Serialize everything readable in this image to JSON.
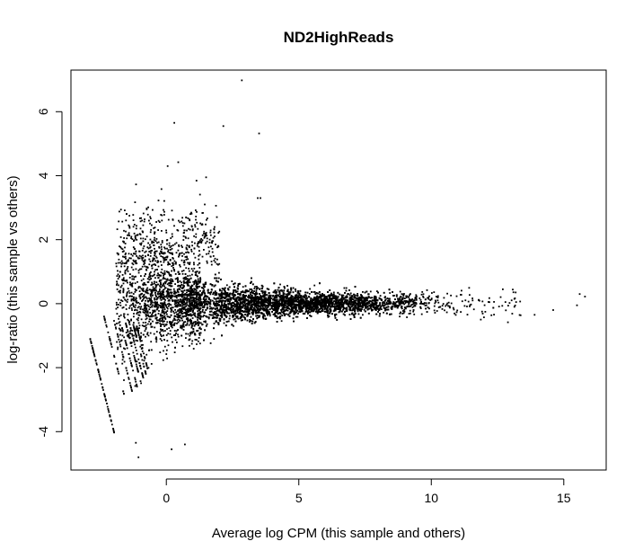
{
  "chart_data": {
    "type": "scatter",
    "title": "ND2HighReads",
    "xlabel": "Average log CPM (this sample and others)",
    "ylabel": "log-ratio (this sample vs others)",
    "xlim": [
      -3.6,
      16.6
    ],
    "ylim": [
      -5.2,
      7.3
    ],
    "xticks": [
      0,
      5,
      10,
      15
    ],
    "yticks": [
      -4,
      -2,
      0,
      2,
      4,
      6
    ],
    "grid": false,
    "legend": "none",
    "point_color": "#000000",
    "generation": {
      "bulk_center_x": [
        0.5,
        8.5
      ],
      "bulk_center_y": 0,
      "lowcount_stripes_start_x": [
        -2.95,
        -2.35,
        -2.0,
        -1.75,
        -1.55,
        -1.4,
        -1.25,
        -1.12
      ],
      "lowcount_stripes_slope": -1.08
    },
    "outliers": [
      {
        "x": 2.85,
        "y": 6.98
      },
      {
        "x": 0.3,
        "y": 5.65
      },
      {
        "x": 2.15,
        "y": 5.55
      },
      {
        "x": 3.5,
        "y": 5.32
      },
      {
        "x": 0.45,
        "y": 4.42
      },
      {
        "x": 0.05,
        "y": 4.3
      },
      {
        "x": 1.5,
        "y": 3.95
      },
      {
        "x": 3.55,
        "y": 3.3
      },
      {
        "x": 3.45,
        "y": 3.3
      },
      {
        "x": 14.6,
        "y": -0.2
      },
      {
        "x": 15.6,
        "y": 0.3
      },
      {
        "x": 15.8,
        "y": 0.22
      },
      {
        "x": 15.5,
        "y": -0.05
      },
      {
        "x": 13.2,
        "y": 0.05
      },
      {
        "x": 12.7,
        "y": 0.45
      },
      {
        "x": 13.9,
        "y": -0.35
      },
      {
        "x": 0.2,
        "y": -4.55
      },
      {
        "x": 0.7,
        "y": -4.4
      },
      {
        "x": -1.05,
        "y": -4.8
      },
      {
        "x": -1.15,
        "y": -4.35
      }
    ]
  }
}
